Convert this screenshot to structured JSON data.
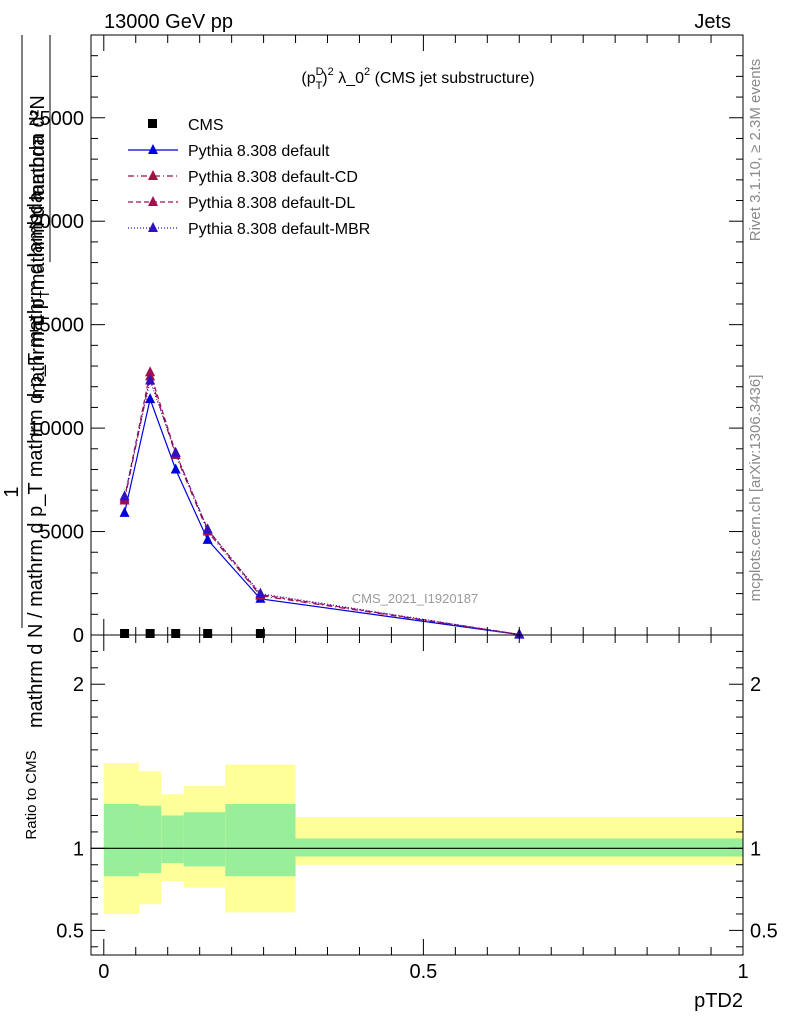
{
  "header": {
    "left": "13000 GeV pp",
    "right": "Jets"
  },
  "side_text": {
    "upper": "Rivet 3.1.10, ≥ 2.3M events",
    "lower": "mcplots.cern.ch [arXiv:1306.3436]"
  },
  "watermark": "CMS_2021_I1920187",
  "chart_data": [
    {
      "type": "line",
      "title": "(p_T^D)^2 λ_0^2 (CMS jet substructure)",
      "title_parts": {
        "pre": "(p",
        "sup1": "D",
        "sub1": "T",
        "mid": ")",
        "sup2": "2",
        "post": " λ_0",
        "sup3": "2",
        "tail": " (CMS jet substructure)"
      },
      "ylabel_numerator": "mathrm d²N",
      "ylabel_one": "1",
      "ylabel_denominator": "mathrm d N / mathrm d p_T mathrm d p_T mathrm d lambda",
      "xlim": [
        -0.02,
        1.0
      ],
      "ylim": [
        0,
        29000
      ],
      "yticks": [
        0,
        5000,
        10000,
        15000,
        20000,
        25000
      ],
      "ytick_labels": [
        "0",
        "5000",
        "10000",
        "15000",
        "20000",
        "25000"
      ],
      "legend_placement": "top-left",
      "series": [
        {
          "name": "CMS",
          "style": "marker",
          "color": "#000000",
          "x": [
            0.0325,
            0.0725,
            0.1125,
            0.1625,
            0.245
          ],
          "y": [
            0,
            0,
            0,
            0,
            0
          ]
        },
        {
          "name": "Pythia 8.308 default",
          "style": "solid",
          "color": "#0000dd",
          "x": [
            0.0325,
            0.0725,
            0.1125,
            0.1625,
            0.245,
            0.65
          ],
          "y": [
            5900,
            11400,
            8000,
            4600,
            1750,
            20
          ]
        },
        {
          "name": "Pythia 8.308 default-CD",
          "style": "dashdot",
          "color": "#a01040",
          "x": [
            0.0325,
            0.0725,
            0.1125,
            0.1625,
            0.245,
            0.65
          ],
          "y": [
            6500,
            12500,
            8700,
            5000,
            1900,
            25
          ]
        },
        {
          "name": "Pythia 8.308 default-DL",
          "style": "dashed",
          "color": "#a01050",
          "x": [
            0.0325,
            0.0725,
            0.1125,
            0.1625,
            0.245,
            0.65
          ],
          "y": [
            6600,
            12700,
            8800,
            5100,
            1950,
            25
          ]
        },
        {
          "name": "Pythia 8.308 default-MBR",
          "style": "dotted",
          "color": "#3010c0",
          "x": [
            0.0325,
            0.0725,
            0.1125,
            0.1625,
            0.245,
            0.65
          ],
          "y": [
            6700,
            12300,
            8800,
            5100,
            2000,
            25
          ]
        }
      ]
    },
    {
      "type": "area",
      "ylabel": "Ratio to CMS",
      "xlabel": "pTD2",
      "xlim": [
        -0.02,
        1.0
      ],
      "ylim": [
        0.35,
        2.3
      ],
      "yticks": [
        0.5,
        1,
        2
      ],
      "ytick_labels": [
        "0.5",
        "1",
        "2"
      ],
      "xticks": [
        0,
        0.5,
        1
      ],
      "xtick_labels": [
        "0",
        "0.5",
        "1"
      ],
      "reference_line": 1,
      "band_colors": {
        "inner": "#99ee99",
        "outer": "#ffff99"
      },
      "bins": [
        {
          "x0": 0.0,
          "x1": 0.055,
          "inner": [
            0.83,
            1.27
          ],
          "outer": [
            0.6,
            1.52
          ]
        },
        {
          "x0": 0.055,
          "x1": 0.09,
          "inner": [
            0.85,
            1.26
          ],
          "outer": [
            0.66,
            1.47
          ]
        },
        {
          "x0": 0.09,
          "x1": 0.125,
          "inner": [
            0.91,
            1.2
          ],
          "outer": [
            0.8,
            1.33
          ]
        },
        {
          "x0": 0.125,
          "x1": 0.19,
          "inner": [
            0.89,
            1.22
          ],
          "outer": [
            0.76,
            1.38
          ]
        },
        {
          "x0": 0.19,
          "x1": 0.3,
          "inner": [
            0.83,
            1.27
          ],
          "outer": [
            0.61,
            1.51
          ]
        },
        {
          "x0": 0.3,
          "x1": 1.0,
          "inner": [
            0.95,
            1.06
          ],
          "outer": [
            0.9,
            1.19
          ]
        }
      ]
    }
  ]
}
